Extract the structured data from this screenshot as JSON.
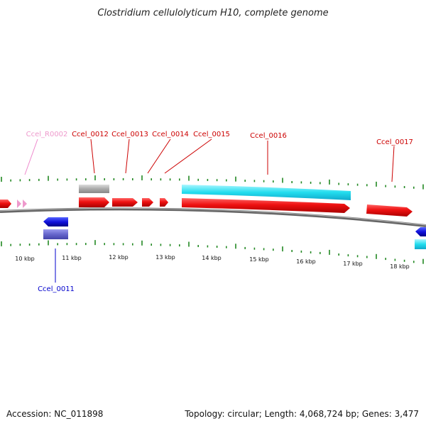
{
  "title": "Clostridium cellulolyticum H10, complete genome",
  "footer": {
    "accession": "Accession: NC_011898",
    "summary": "Topology: circular; Length: 4,068,724 bp; Genes: 3,477"
  },
  "colors": {
    "forward_cds": "#ee1111",
    "reverse_cds": "#1111dd",
    "rna": "#ee99cc",
    "pseudo": "#aaaaaa",
    "cyan_feature": "#22ddee",
    "reverse_feature": "#6666cc",
    "tick": "#228822",
    "backbone": "#888888"
  },
  "scale_labels": [
    "10 kbp",
    "11 kbp",
    "12 kbp",
    "13 kbp",
    "14 kbp",
    "15 kbp",
    "16 kbp",
    "17 kbp",
    "18 kbp"
  ],
  "gene_labels": [
    {
      "text": "Ccel_R0002",
      "kind": "rna"
    },
    {
      "text": "Ccel_0012",
      "kind": "forward"
    },
    {
      "text": "Ccel_0013",
      "kind": "forward"
    },
    {
      "text": "Ccel_0014",
      "kind": "forward"
    },
    {
      "text": "Ccel_0015",
      "kind": "forward"
    },
    {
      "text": "Ccel_0016",
      "kind": "forward"
    },
    {
      "text": "Ccel_0017",
      "kind": "forward"
    },
    {
      "text": "Ccel_0011",
      "kind": "reverse"
    }
  ]
}
